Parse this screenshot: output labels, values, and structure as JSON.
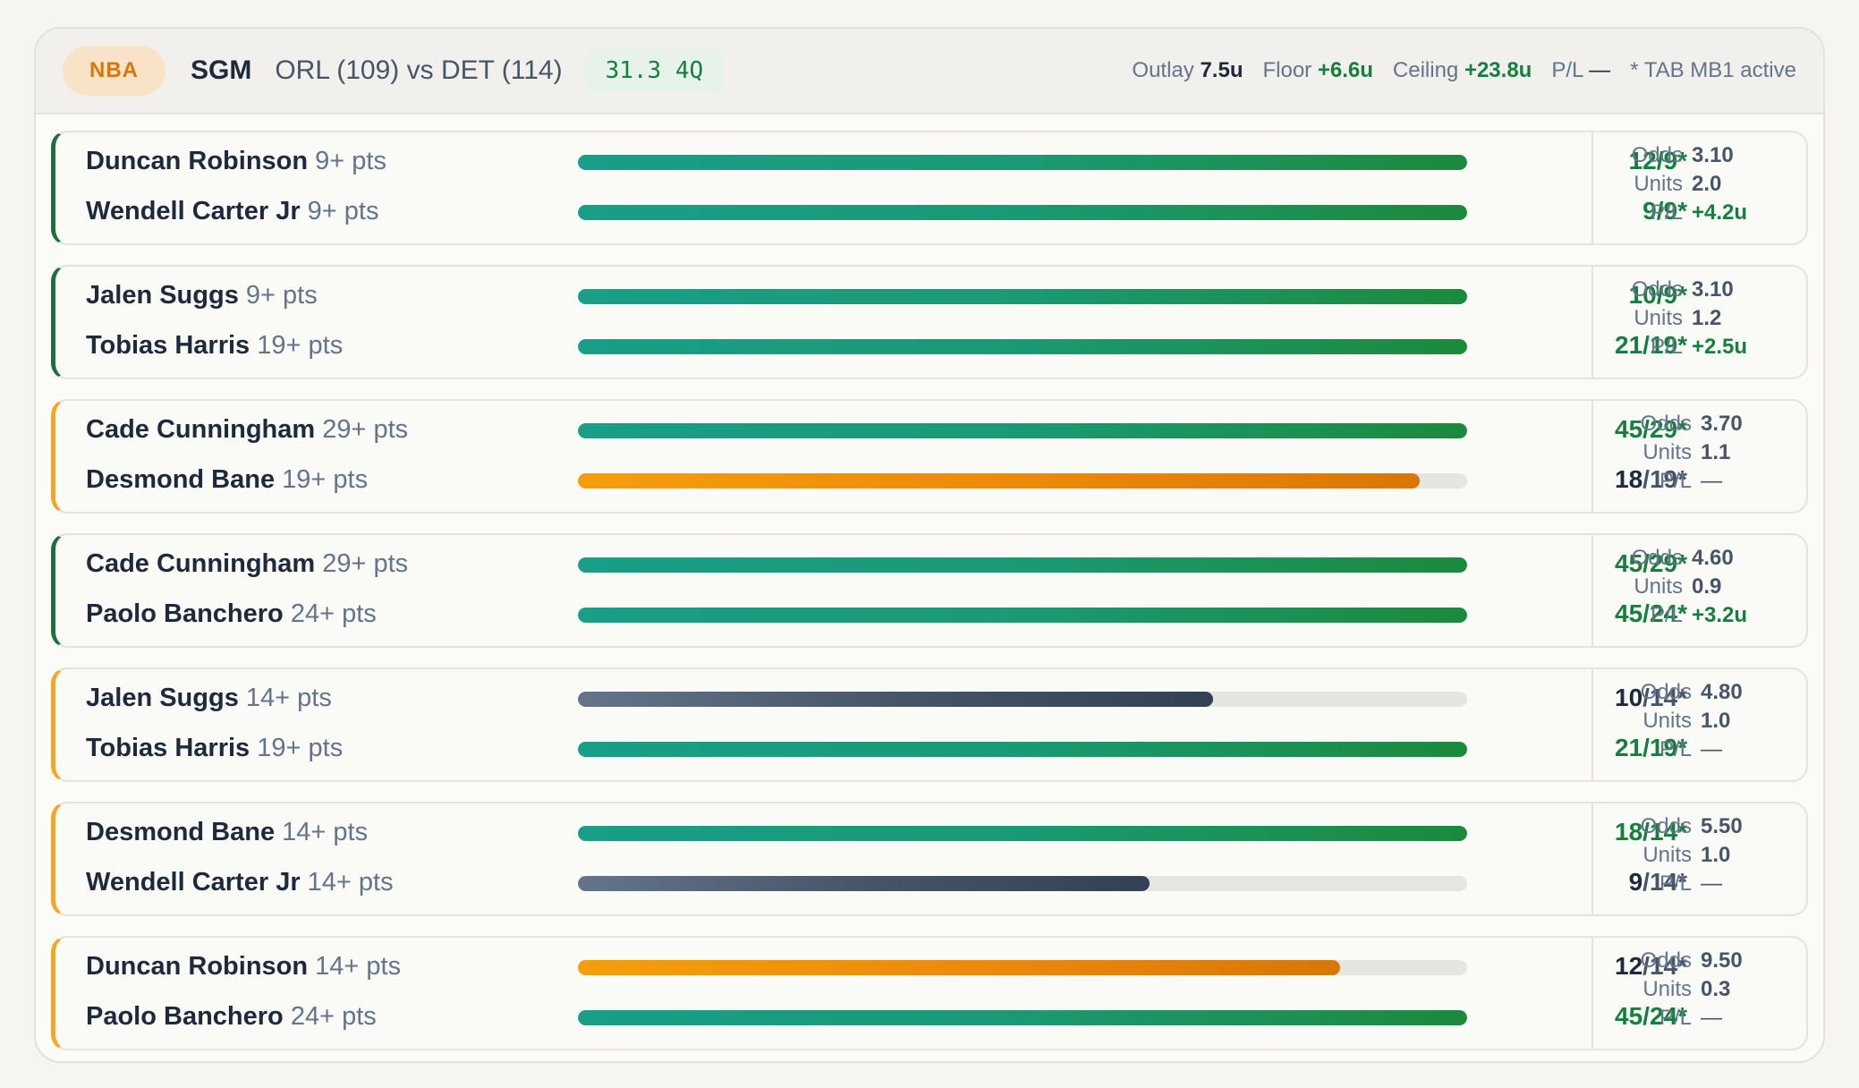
{
  "header": {
    "league": "NBA",
    "bet_type": "SGM",
    "match": "ORL (109) vs DET (114)",
    "clock": "31.3 4Q",
    "outlay_label": "Outlay",
    "outlay_value": "7.5u",
    "floor_label": "Floor",
    "floor_value": "+6.6u",
    "ceiling_label": "Ceiling",
    "ceiling_value": "+23.8u",
    "pl_label": "P/L",
    "pl_value": "—",
    "note": "* TAB MB1 active"
  },
  "labels": {
    "odds": "Odds",
    "units": "Units",
    "pl": "P/L"
  },
  "legs": [
    {
      "status": "won",
      "odds": "3.10",
      "units": "2.0",
      "pl": "+4.2u",
      "selections": [
        {
          "player": "Duncan Robinson",
          "threshold": "9+ pts",
          "current": "12",
          "target": "/9*",
          "progress": 1.0,
          "state": "hit"
        },
        {
          "player": "Wendell Carter Jr",
          "threshold": "9+ pts",
          "current": "9",
          "target": "/9*",
          "progress": 1.0,
          "state": "hit"
        }
      ]
    },
    {
      "status": "won",
      "odds": "3.10",
      "units": "1.2",
      "pl": "+2.5u",
      "selections": [
        {
          "player": "Jalen Suggs",
          "threshold": "9+ pts",
          "current": "10",
          "target": "/9*",
          "progress": 1.0,
          "state": "hit"
        },
        {
          "player": "Tobias Harris",
          "threshold": "19+ pts",
          "current": "21",
          "target": "/19*",
          "progress": 1.0,
          "state": "hit"
        }
      ]
    },
    {
      "status": "pending",
      "odds": "3.70",
      "units": "1.1",
      "pl": "—",
      "selections": [
        {
          "player": "Cade Cunningham",
          "threshold": "29+ pts",
          "current": "45",
          "target": "/29*",
          "progress": 1.0,
          "state": "hit"
        },
        {
          "player": "Desmond Bane",
          "threshold": "19+ pts",
          "current": "18",
          "target": "/19*",
          "progress": 0.947,
          "state": "near"
        }
      ]
    },
    {
      "status": "won",
      "odds": "4.60",
      "units": "0.9",
      "pl": "+3.2u",
      "selections": [
        {
          "player": "Cade Cunningham",
          "threshold": "29+ pts",
          "current": "45",
          "target": "/29*",
          "progress": 1.0,
          "state": "hit"
        },
        {
          "player": "Paolo Banchero",
          "threshold": "24+ pts",
          "current": "45",
          "target": "/24*",
          "progress": 1.0,
          "state": "hit"
        }
      ]
    },
    {
      "status": "pending",
      "odds": "4.80",
      "units": "1.0",
      "pl": "—",
      "selections": [
        {
          "player": "Jalen Suggs",
          "threshold": "14+ pts",
          "current": "10",
          "target": "/14*",
          "progress": 0.714,
          "state": "far"
        },
        {
          "player": "Tobias Harris",
          "threshold": "19+ pts",
          "current": "21",
          "target": "/19*",
          "progress": 1.0,
          "state": "hit"
        }
      ]
    },
    {
      "status": "pending",
      "odds": "5.50",
      "units": "1.0",
      "pl": "—",
      "selections": [
        {
          "player": "Desmond Bane",
          "threshold": "14+ pts",
          "current": "18",
          "target": "/14*",
          "progress": 1.0,
          "state": "hit"
        },
        {
          "player": "Wendell Carter Jr",
          "threshold": "14+ pts",
          "current": "9",
          "target": "/14*",
          "progress": 0.643,
          "state": "far"
        }
      ]
    },
    {
      "status": "pending",
      "odds": "9.50",
      "units": "0.3",
      "pl": "—",
      "selections": [
        {
          "player": "Duncan Robinson",
          "threshold": "14+ pts",
          "current": "12",
          "target": "/14*",
          "progress": 0.857,
          "state": "near"
        },
        {
          "player": "Paolo Banchero",
          "threshold": "24+ pts",
          "current": "45",
          "target": "/24*",
          "progress": 1.0,
          "state": "hit"
        }
      ]
    }
  ]
}
